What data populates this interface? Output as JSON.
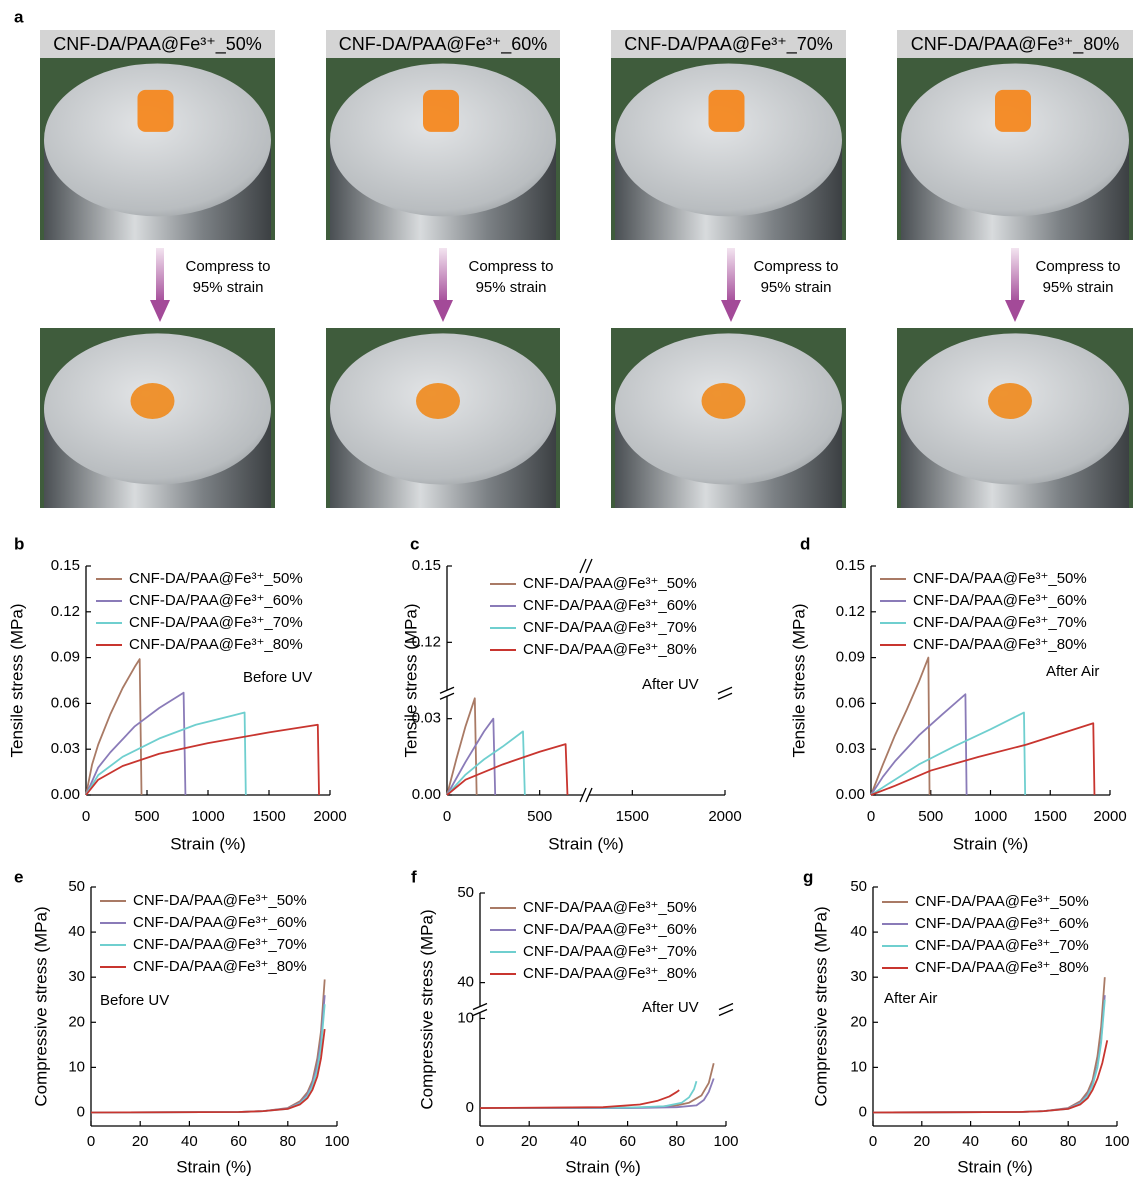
{
  "panel_a": {
    "panel_label": "a",
    "photos": [
      {
        "caption": "CNF-DA/PAA@Fe³⁺_50%",
        "note": [
          "Compress to",
          "95% strain"
        ]
      },
      {
        "caption": "CNF-DA/PAA@Fe³⁺_60%",
        "note": [
          "Compress to",
          "95% strain"
        ]
      },
      {
        "caption": "CNF-DA/PAA@Fe³⁺_70%",
        "note": [
          "Compress to",
          "95% strain"
        ]
      },
      {
        "caption": "CNF-DA/PAA@Fe³⁺_80%",
        "note": [
          "Compress to",
          "95% strain"
        ]
      }
    ]
  },
  "chart_data": [
    {
      "type": "line",
      "panel_label": "b",
      "annotation": "Before UV",
      "xlabel": "Strain (%)",
      "ylabel": "Tensile stress (MPa)",
      "xlim": [
        0,
        2000
      ],
      "xticks": [
        0,
        500,
        1000,
        1500,
        2000
      ],
      "ylim": [
        0,
        0.15
      ],
      "yticks": [
        {
          "value": 0,
          "label": "0.00"
        },
        0.03,
        0.06,
        0.09,
        0.12,
        0.15
      ],
      "series": [
        {
          "name": "CNF-DA/PAA@Fe³⁺_50%",
          "color": "#a97a65",
          "x": [
            0,
            50,
            100,
            200,
            300,
            400,
            440,
            455
          ],
          "values": [
            0,
            0.02,
            0.033,
            0.053,
            0.07,
            0.084,
            0.089,
            0
          ]
        },
        {
          "name": "CNF-DA/PAA@Fe³⁺_60%",
          "color": "#8a7bb8",
          "x": [
            0,
            100,
            200,
            400,
            600,
            800,
            815
          ],
          "values": [
            0,
            0.018,
            0.028,
            0.045,
            0.057,
            0.067,
            0
          ]
        },
        {
          "name": "CNF-DA/PAA@Fe³⁺_70%",
          "color": "#6fcfcf",
          "x": [
            0,
            100,
            300,
            600,
            900,
            1200,
            1300,
            1310
          ],
          "values": [
            0,
            0.013,
            0.025,
            0.037,
            0.046,
            0.052,
            0.054,
            0
          ]
        },
        {
          "name": "CNF-DA/PAA@Fe³⁺_80%",
          "color": "#c8352f",
          "x": [
            0,
            100,
            300,
            600,
            1000,
            1500,
            1900,
            1910
          ],
          "values": [
            0,
            0.01,
            0.019,
            0.027,
            0.034,
            0.041,
            0.046,
            0
          ]
        }
      ]
    },
    {
      "type": "line",
      "panel_label": "c",
      "annotation": "After UV",
      "xlabel": "Strain (%)",
      "ylabel": "Tensile stress (MPa)",
      "xlim": [
        0,
        2000
      ],
      "xbreak": [
        750,
        1250
      ],
      "xticks": [
        0,
        500,
        1500,
        2000
      ],
      "ylim": [
        0,
        0.15
      ],
      "ybreak": [
        0.04,
        0.1
      ],
      "yticks": [
        {
          "value": 0,
          "label": "0.00"
        },
        0.03,
        0.12,
        0.15
      ],
      "series": [
        {
          "name": "CNF-DA/PAA@Fe³⁺_50%",
          "color": "#a97a65",
          "x": [
            0,
            50,
            100,
            150,
            160
          ],
          "values": [
            0,
            0.014,
            0.027,
            0.038,
            0
          ]
        },
        {
          "name": "CNF-DA/PAA@Fe³⁺_60%",
          "color": "#8a7bb8",
          "x": [
            0,
            100,
            200,
            250,
            260
          ],
          "values": [
            0,
            0.013,
            0.025,
            0.03,
            0
          ]
        },
        {
          "name": "CNF-DA/PAA@Fe³⁺_70%",
          "color": "#6fcfcf",
          "x": [
            0,
            100,
            200,
            300,
            410,
            420
          ],
          "values": [
            0,
            0.008,
            0.014,
            0.019,
            0.025,
            0
          ]
        },
        {
          "name": "CNF-DA/PAA@Fe³⁺_80%",
          "color": "#c8352f",
          "x": [
            0,
            100,
            300,
            500,
            640,
            650
          ],
          "values": [
            0,
            0.006,
            0.012,
            0.017,
            0.02,
            0
          ]
        }
      ]
    },
    {
      "type": "line",
      "panel_label": "d",
      "annotation": "After Air",
      "xlabel": "Strain (%)",
      "ylabel": "Tensile stress (MPa)",
      "xlim": [
        0,
        2000
      ],
      "xticks": [
        0,
        500,
        1000,
        1500,
        2000
      ],
      "ylim": [
        0,
        0.15
      ],
      "yticks": [
        {
          "value": 0,
          "label": "0.00"
        },
        0.03,
        0.06,
        0.09,
        0.12,
        0.15
      ],
      "series": [
        {
          "name": "CNF-DA/PAA@Fe³⁺_50%",
          "color": "#a97a65",
          "x": [
            0,
            100,
            200,
            300,
            400,
            480,
            490
          ],
          "values": [
            0,
            0.02,
            0.039,
            0.056,
            0.074,
            0.09,
            0
          ]
        },
        {
          "name": "CNF-DA/PAA@Fe³⁺_60%",
          "color": "#8a7bb8",
          "x": [
            0,
            100,
            200,
            400,
            600,
            790,
            800
          ],
          "values": [
            0,
            0.012,
            0.022,
            0.039,
            0.053,
            0.066,
            0
          ]
        },
        {
          "name": "CNF-DA/PAA@Fe³⁺_70%",
          "color": "#6fcfcf",
          "x": [
            0,
            200,
            400,
            700,
            1000,
            1280,
            1290
          ],
          "values": [
            0,
            0.01,
            0.02,
            0.032,
            0.043,
            0.054,
            0
          ]
        },
        {
          "name": "CNF-DA/PAA@Fe³⁺_80%",
          "color": "#c8352f",
          "x": [
            0,
            200,
            500,
            900,
            1300,
            1860,
            1870
          ],
          "values": [
            0,
            0.006,
            0.016,
            0.025,
            0.033,
            0.047,
            0
          ]
        }
      ]
    },
    {
      "type": "line",
      "panel_label": "e",
      "annotation": "Before UV",
      "xlabel": "Strain (%)",
      "ylabel": "Compressive stress (MPa)",
      "xlim": [
        0,
        100
      ],
      "xticks": [
        0,
        20,
        40,
        60,
        80,
        100
      ],
      "ylim": [
        -3,
        50
      ],
      "yticks": [
        0,
        10,
        20,
        30,
        40,
        50
      ],
      "series": [
        {
          "name": "CNF-DA/PAA@Fe³⁺_50%",
          "color": "#a97a65",
          "x": [
            0,
            60,
            70,
            80,
            85,
            88,
            90,
            92,
            93.5,
            95
          ],
          "values": [
            0,
            0.1,
            0.3,
            1,
            2.5,
            4.5,
            7,
            12,
            18,
            29.5
          ]
        },
        {
          "name": "CNF-DA/PAA@Fe³⁺_60%",
          "color": "#8a7bb8",
          "x": [
            0,
            60,
            70,
            80,
            85,
            88,
            90,
            92,
            93.5,
            95
          ],
          "values": [
            0,
            0.1,
            0.3,
            0.9,
            2.2,
            4,
            6.3,
            10.5,
            16,
            26
          ]
        },
        {
          "name": "CNF-DA/PAA@Fe³⁺_70%",
          "color": "#6fcfcf",
          "x": [
            0,
            60,
            70,
            80,
            85,
            88,
            90,
            92,
            93.5,
            95
          ],
          "values": [
            0,
            0.1,
            0.3,
            0.8,
            2,
            3.6,
            5.8,
            9.5,
            14.5,
            24
          ]
        },
        {
          "name": "CNF-DA/PAA@Fe³⁺_80%",
          "color": "#c8352f",
          "x": [
            0,
            60,
            70,
            80,
            85,
            88,
            90,
            92,
            93.5,
            95
          ],
          "values": [
            0,
            0.1,
            0.3,
            0.8,
            1.8,
            3.2,
            5,
            8,
            12,
            18.5
          ]
        }
      ]
    },
    {
      "type": "line",
      "panel_label": "f",
      "annotation": "After UV",
      "xlabel": "Strain (%)",
      "ylabel": "Compressive stress (MPa)",
      "xlim": [
        0,
        100
      ],
      "xticks": [
        0,
        20,
        40,
        60,
        80,
        100
      ],
      "ylim": [
        -2,
        50
      ],
      "ybreak": [
        11,
        37
      ],
      "yticks": [
        0,
        10,
        40,
        50
      ],
      "series": [
        {
          "name": "CNF-DA/PAA@Fe³⁺_50%",
          "color": "#a97a65",
          "x": [
            0,
            60,
            70,
            80,
            85,
            90,
            93,
            95
          ],
          "values": [
            0,
            0.05,
            0.1,
            0.3,
            0.6,
            1.4,
            2.8,
            5
          ]
        },
        {
          "name": "CNF-DA/PAA@Fe³⁺_60%",
          "color": "#8a7bb8",
          "x": [
            0,
            60,
            80,
            88,
            91,
            93,
            95
          ],
          "values": [
            0,
            0,
            0.1,
            0.3,
            0.9,
            1.8,
            3.3
          ]
        },
        {
          "name": "CNF-DA/PAA@Fe³⁺_70%",
          "color": "#6fcfcf",
          "x": [
            0,
            60,
            75,
            82,
            85,
            87,
            88
          ],
          "values": [
            0,
            0.05,
            0.2,
            0.6,
            1.2,
            2.1,
            3
          ]
        },
        {
          "name": "CNF-DA/PAA@Fe³⁺_80%",
          "color": "#c8352f",
          "x": [
            0,
            50,
            65,
            72,
            77,
            80,
            81
          ],
          "values": [
            0,
            0.1,
            0.4,
            0.8,
            1.3,
            1.8,
            2
          ]
        }
      ]
    },
    {
      "type": "line",
      "panel_label": "g",
      "annotation": "After Air",
      "xlabel": "Strain (%)",
      "ylabel": "Compressive stress (MPa)",
      "xlim": [
        0,
        100
      ],
      "xticks": [
        0,
        20,
        40,
        60,
        80,
        100
      ],
      "ylim": [
        -3,
        50
      ],
      "yticks": [
        0,
        10,
        20,
        30,
        40,
        50
      ],
      "series": [
        {
          "name": "CNF-DA/PAA@Fe³⁺_50%",
          "color": "#a97a65",
          "x": [
            0,
            60,
            70,
            80,
            85,
            88,
            90,
            92,
            93.5,
            95
          ],
          "values": [
            0,
            0.1,
            0.3,
            1,
            2.5,
            4.6,
            7.2,
            12.5,
            19,
            30
          ]
        },
        {
          "name": "CNF-DA/PAA@Fe³⁺_60%",
          "color": "#8a7bb8",
          "x": [
            0,
            60,
            70,
            80,
            85,
            88,
            90,
            92,
            93.5,
            95
          ],
          "values": [
            0,
            0.1,
            0.3,
            0.9,
            2.2,
            4,
            6.3,
            10.5,
            16,
            26
          ]
        },
        {
          "name": "CNF-DA/PAA@Fe³⁺_70%",
          "color": "#6fcfcf",
          "x": [
            0,
            60,
            70,
            80,
            85,
            88,
            90,
            92,
            93.5,
            95
          ],
          "values": [
            0,
            0.1,
            0.3,
            0.8,
            2,
            3.7,
            6,
            10,
            15.5,
            25
          ]
        },
        {
          "name": "CNF-DA/PAA@Fe³⁺_80%",
          "color": "#c8352f",
          "x": [
            0,
            60,
            70,
            80,
            85,
            88,
            90,
            92,
            94,
            96
          ],
          "values": [
            0,
            0.1,
            0.3,
            0.8,
            1.8,
            3.2,
            5,
            7.5,
            11,
            16
          ]
        }
      ]
    }
  ]
}
